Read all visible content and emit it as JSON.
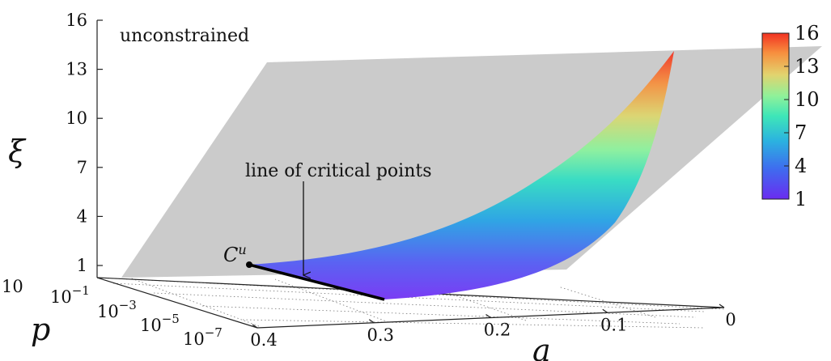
{
  "chart_data": {
    "type": "surface",
    "panel_label": "unconstrained",
    "axes": {
      "z": {
        "label": "ξ",
        "ticks": [
          {
            "value": 1,
            "label": "1"
          },
          {
            "value": 4,
            "label": "4"
          },
          {
            "value": 7,
            "label": "7"
          },
          {
            "value": 10,
            "label": "10"
          },
          {
            "value": 13,
            "label": "13"
          },
          {
            "value": 16,
            "label": "16"
          }
        ],
        "range": [
          1,
          16
        ]
      },
      "p": {
        "label": "p",
        "scale": "log",
        "ticks": [
          {
            "label_base": "10",
            "label_exp": ""
          },
          {
            "label_base": "10",
            "label_exp": "−1"
          },
          {
            "label_base": "10",
            "label_exp": "−3"
          },
          {
            "label_base": "10",
            "label_exp": "−5"
          },
          {
            "label_base": "10",
            "label_exp": "−7"
          }
        ]
      },
      "a": {
        "label": "a",
        "ticks": [
          {
            "value": 0.4,
            "label": "0.4"
          },
          {
            "value": 0.3,
            "label": "0.3"
          },
          {
            "value": 0.2,
            "label": "0.2"
          },
          {
            "value": 0.1,
            "label": "0.1"
          },
          {
            "value": 0,
            "label": "0"
          }
        ],
        "range": [
          0,
          0.4
        ]
      }
    },
    "annotations": {
      "critical_line": "line of critical points",
      "point_base": "C",
      "point_sup": "u"
    },
    "colorbar": {
      "colormap": "rainbow",
      "ticks": [
        "16",
        "13",
        "10",
        "7",
        "4",
        "1"
      ],
      "range": [
        1,
        16
      ]
    },
    "surface": {
      "description_values": "ξ increases from 1 along the line of critical points (a ≈ 0.3–0.4) up to 16 at a = 0",
      "edge_xi_by_a": [
        {
          "a": 0.3,
          "xi": 1
        },
        {
          "a": 0.25,
          "xi": 1.8
        },
        {
          "a": 0.2,
          "xi": 3.0
        },
        {
          "a": 0.15,
          "xi": 5.0
        },
        {
          "a": 0.1,
          "xi": 8.0
        },
        {
          "a": 0.05,
          "xi": 11.5
        },
        {
          "a": 0.0,
          "xi": 16
        }
      ]
    },
    "colors": {
      "plane": "#c8c8c8",
      "critical_line": "#000000"
    }
  }
}
